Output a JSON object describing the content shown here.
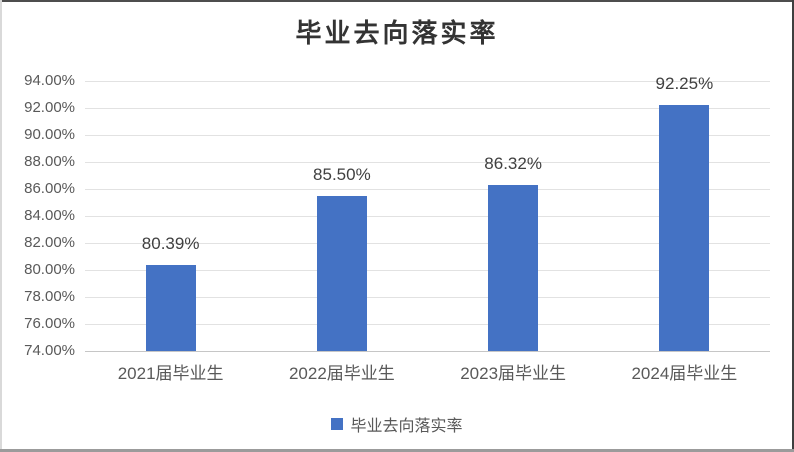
{
  "chart_data": {
    "type": "bar",
    "title": "毕业去向落实率",
    "categories": [
      "2021届毕业生",
      "2022届毕业生",
      "2023届毕业生",
      "2024届毕业生"
    ],
    "series": [
      {
        "name": "毕业去向落实率",
        "values": [
          80.39,
          85.5,
          86.32,
          92.25
        ]
      }
    ],
    "data_labels": [
      "80.39%",
      "85.50%",
      "86.32%",
      "92.25%"
    ],
    "y_ticks": [
      "94.00%",
      "92.00%",
      "90.00%",
      "88.00%",
      "86.00%",
      "84.00%",
      "82.00%",
      "80.00%",
      "78.00%",
      "76.00%",
      "74.00%"
    ],
    "ylim": [
      74,
      94
    ],
    "y_tick_step": 2,
    "grid": true,
    "xlabel": "",
    "ylabel": "",
    "legend": {
      "position": "bottom",
      "label": "毕业去向落实率"
    },
    "colors": {
      "bar": "#4472C4",
      "gridline": "#E2E2E2",
      "baseline": "#C6C6C6",
      "axis_label": "#595959",
      "data_label": "#404040",
      "title": "#333333",
      "legend_text": "#595959"
    }
  }
}
